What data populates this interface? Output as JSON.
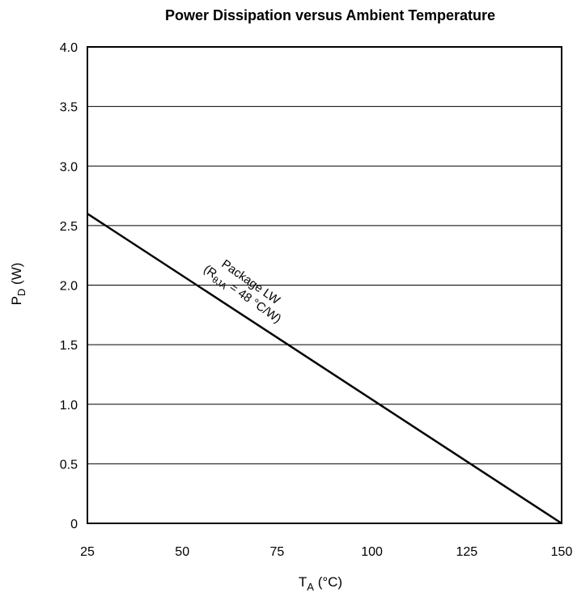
{
  "chart_data": {
    "type": "line",
    "title": "Power Dissipation versus Ambient Temperature",
    "xlabel": {
      "main": "T",
      "sub": "A",
      "unit": " (°C)"
    },
    "ylabel": {
      "main": "P",
      "sub": "D",
      "unit": " (W)"
    },
    "xlim": [
      25,
      150
    ],
    "ylim": [
      0,
      4.0
    ],
    "x_ticks": [
      25,
      50,
      75,
      100,
      125,
      150
    ],
    "x_tick_labels": [
      "25",
      "50",
      "75",
      "100",
      "125",
      "150"
    ],
    "y_ticks": [
      0,
      0.5,
      1.0,
      1.5,
      2.0,
      2.5,
      3.0,
      3.5,
      4.0
    ],
    "y_tick_labels": [
      "0",
      "0.5",
      "1.0",
      "1.5",
      "2.0",
      "2.5",
      "3.0",
      "3.5",
      "4.0"
    ],
    "grid": "horizontal",
    "series": [
      {
        "x": [
          25,
          150
        ],
        "y": [
          2.6,
          0
        ],
        "color": "#000000"
      }
    ],
    "annotation": {
      "line1": "Package LW",
      "line2_prefix": "(R",
      "line2_sub": "θJA",
      "line2_suffix": " = 48 °C/W)"
    }
  }
}
